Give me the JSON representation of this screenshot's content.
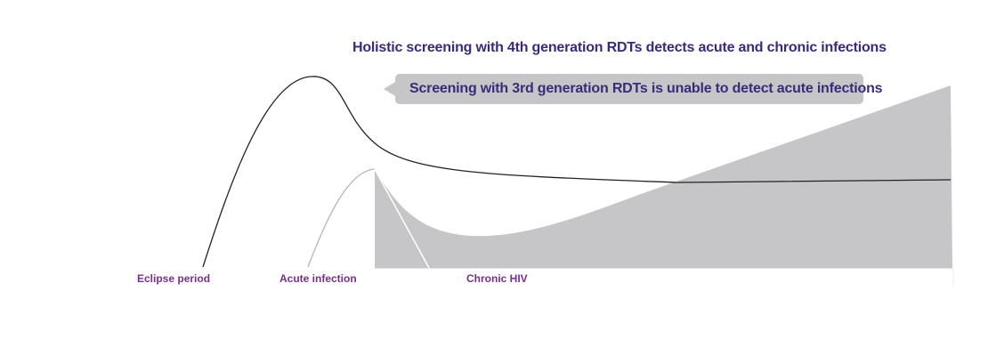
{
  "title": "Holistic screening with 4th generation RDTs detects acute and chronic infections",
  "callout": "Screening with 3rd generation RDTs is unable to detect acute infections",
  "stages": {
    "eclipse": "Eclipse period",
    "acute": "Acute infection",
    "chronic": "Chronic HIV"
  },
  "colors": {
    "title": "#3b2a7a",
    "stage_label": "#7b2d8e",
    "shaded_region": "#c6c6c8",
    "curve_4th_gen": "#222222",
    "curve_3rd_gen": "#b5b5b5"
  }
}
